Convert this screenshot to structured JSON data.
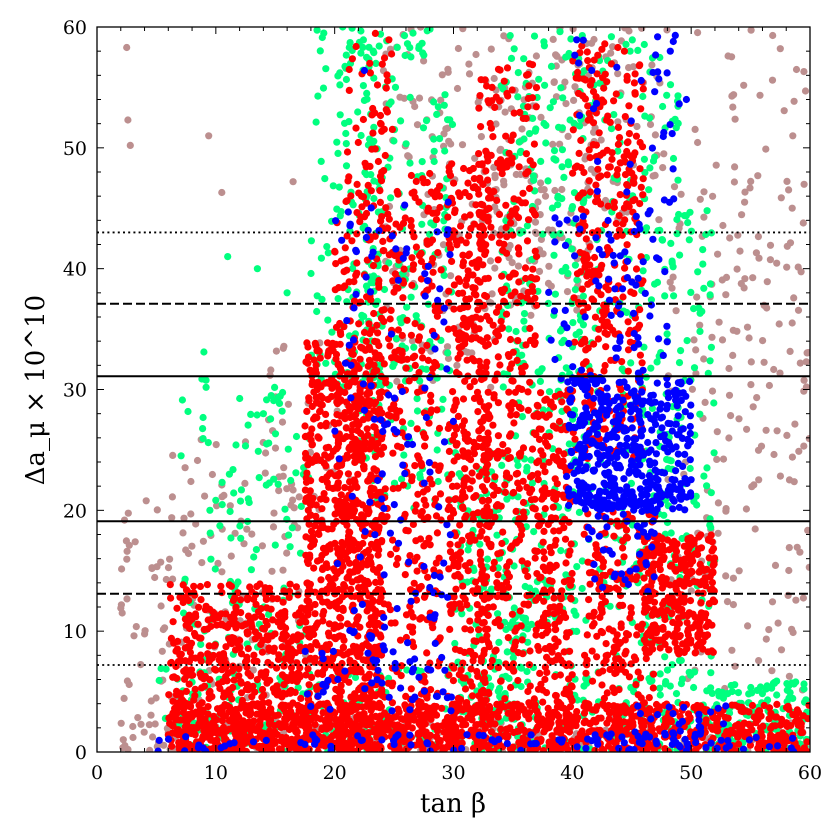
{
  "chart_data": {
    "type": "scatter",
    "title": "",
    "xlabel": "tan β",
    "ylabel": "Δa_μ × 10^10",
    "xlim": [
      0,
      60
    ],
    "ylim": [
      0,
      60
    ],
    "x_ticks": [
      "0",
      "10",
      "20",
      "30",
      "40",
      "50",
      "60"
    ],
    "y_ticks": [
      "0",
      "10",
      "20",
      "30",
      "40",
      "50",
      "60"
    ],
    "x_minor_step": 2,
    "y_minor_step": 2,
    "grid": false,
    "legend": "none",
    "colors": {
      "brown": "#bc8f8f",
      "green": "#00ff7f",
      "red": "#ff0000",
      "blue": "#0000ff"
    },
    "hlines": [
      {
        "y": 43.0,
        "style": "dotted"
      },
      {
        "y": 37.1,
        "style": "dashed"
      },
      {
        "y": 31.1,
        "style": "solid"
      },
      {
        "y": 19.1,
        "style": "solid"
      },
      {
        "y": 13.1,
        "style": "dashed"
      },
      {
        "y": 7.2,
        "style": "dotted"
      }
    ],
    "point_sets": [
      {
        "color": "brown",
        "regions": [
          {
            "x": [
              2,
              60
            ],
            "y": [
              0,
              3
            ],
            "n": 180
          },
          {
            "x": [
              2,
              6
            ],
            "y": [
              0,
              21
            ],
            "n": 45
          },
          {
            "x": [
              6,
              18
            ],
            "y": [
              4,
              26
            ],
            "n": 110
          },
          {
            "x": [
              14,
              22
            ],
            "y": [
              18,
              34
            ],
            "n": 40
          },
          {
            "x": [
              24,
              34
            ],
            "y": [
              30,
              60
            ],
            "n": 130
          },
          {
            "x": [
              33,
              42
            ],
            "y": [
              36,
              60
            ],
            "n": 140
          },
          {
            "x": [
              48,
              60
            ],
            "y": [
              5,
              48
            ],
            "n": 130
          },
          {
            "x": [
              50,
              60
            ],
            "y": [
              20,
              60
            ],
            "n": 70
          },
          {
            "x": [
              41,
              48
            ],
            "y": [
              44,
              60
            ],
            "n": 50
          }
        ],
        "points": [
          [
            2.5,
            58.3
          ],
          [
            2.6,
            52.3
          ],
          [
            2.8,
            50.2
          ],
          [
            9.4,
            51.0
          ],
          [
            10.5,
            46.3
          ],
          [
            16.5,
            47.2
          ],
          [
            57.5,
            58.2
          ],
          [
            54.5,
            45.5
          ],
          [
            58.5,
            35.5
          ]
        ]
      },
      {
        "color": "green",
        "regions": [
          {
            "x": [
              5,
              60
            ],
            "y": [
              0,
              7
            ],
            "n": 260
          },
          {
            "x": [
              7,
              18
            ],
            "y": [
              5,
              31
            ],
            "n": 120
          },
          {
            "x": [
              18,
              24
            ],
            "y": [
              30,
              60
            ],
            "n": 130
          },
          {
            "x": [
              22,
              30
            ],
            "y": [
              20,
              60
            ],
            "n": 200
          },
          {
            "x": [
              30,
              37
            ],
            "y": [
              0,
              25
            ],
            "n": 150
          },
          {
            "x": [
              34,
              41
            ],
            "y": [
              10,
              60
            ],
            "n": 220
          },
          {
            "x": [
              39,
              49
            ],
            "y": [
              0,
              60
            ],
            "n": 280
          },
          {
            "x": [
              48,
              52
            ],
            "y": [
              5,
              45
            ],
            "n": 90
          },
          {
            "x": [
              52,
              60
            ],
            "y": [
              0,
              6
            ],
            "n": 80
          }
        ],
        "points": [
          [
            9,
            33.1
          ],
          [
            11,
            41
          ],
          [
            13.5,
            40
          ],
          [
            16,
            38
          ],
          [
            9.5,
            20
          ],
          [
            14,
            28
          ]
        ]
      },
      {
        "color": "red",
        "regions": [
          {
            "x": [
              6,
              60
            ],
            "y": [
              0,
              4
            ],
            "n": 1000
          },
          {
            "x": [
              6,
              18
            ],
            "y": [
              0,
              14
            ],
            "n": 550
          },
          {
            "x": [
              17.5,
              24
            ],
            "y": [
              0,
              34
            ],
            "n": 750
          },
          {
            "x": [
              20,
              29
            ],
            "y": [
              0,
              48
            ],
            "n": 650
          },
          {
            "x": [
              29.5,
              33
            ],
            "y": [
              0,
              49
            ],
            "n": 400
          },
          {
            "x": [
              32,
              37
            ],
            "y": [
              0,
              57
            ],
            "n": 450
          },
          {
            "x": [
              37,
              40
            ],
            "y": [
              0,
              30
            ],
            "n": 250
          },
          {
            "x": [
              40,
              46
            ],
            "y": [
              24,
              59
            ],
            "n": 350
          },
          {
            "x": [
              41,
              47
            ],
            "y": [
              0,
              20
            ],
            "n": 250
          },
          {
            "x": [
              46,
              52
            ],
            "y": [
              8,
              18
            ],
            "n": 300
          },
          {
            "x": [
              21,
              25
            ],
            "y": [
              48,
              60
            ],
            "n": 40
          }
        ],
        "points": []
      },
      {
        "color": "blue",
        "regions": [
          {
            "x": [
              39.5,
              50
            ],
            "y": [
              20,
              31
            ],
            "n": 450
          },
          {
            "x": [
              38,
              48
            ],
            "y": [
              30,
              45
            ],
            "n": 80
          },
          {
            "x": [
              41,
              47
            ],
            "y": [
              13,
              22
            ],
            "n": 60
          },
          {
            "x": [
              20,
              30
            ],
            "y": [
              8,
              46
            ],
            "n": 120
          },
          {
            "x": [
              17,
              30
            ],
            "y": [
              3,
              9
            ],
            "n": 50
          },
          {
            "x": [
              5,
              60
            ],
            "y": [
              0,
              1.5
            ],
            "n": 90
          },
          {
            "x": [
              40,
              49
            ],
            "y": [
              44,
              60
            ],
            "n": 35
          },
          {
            "x": [
              44,
              53
            ],
            "y": [
              0,
              4
            ],
            "n": 40
          }
        ],
        "points": [
          [
            22.5,
            56.4
          ],
          [
            48.5,
            58.8
          ],
          [
            49.6,
            54
          ]
        ]
      }
    ]
  }
}
